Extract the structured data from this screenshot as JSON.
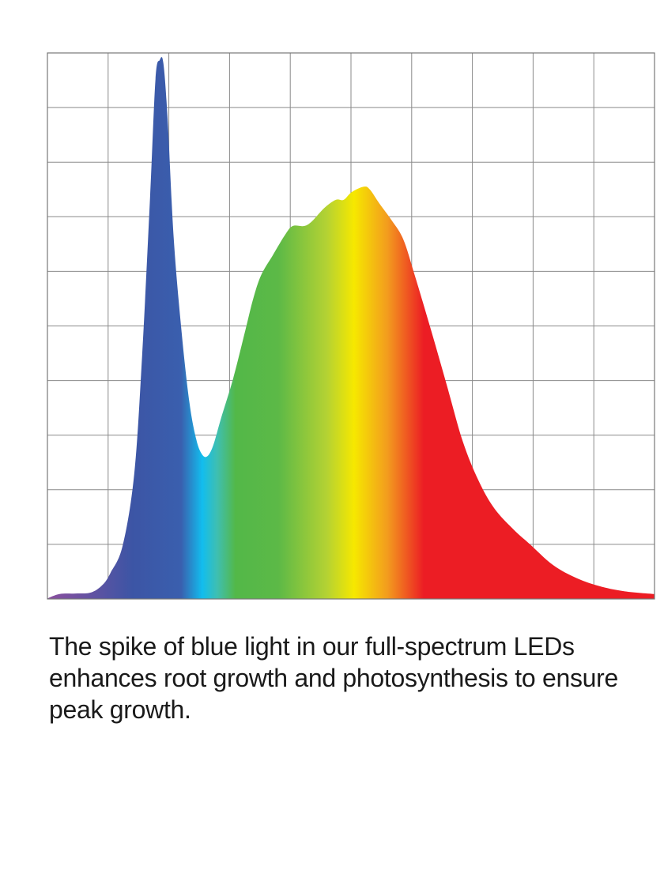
{
  "caption": "The spike of blue light in our full-spectrum LEDs enhances root growth and photosynthesis to ensure peak growth.",
  "chart_data": {
    "type": "area",
    "title": "",
    "xlabel": "",
    "ylabel": "",
    "xlim": [
      0,
      10
    ],
    "ylim": [
      0,
      10
    ],
    "grid": true,
    "grid_divisions": {
      "x": 10,
      "y": 10
    },
    "tick_labels": "none",
    "fill": "visible-spectrum gradient (violet to red)",
    "gradient_colors": [
      {
        "x": 0,
        "color": "#8a4f9e"
      },
      {
        "x": 1.4,
        "color": "#3c55a5"
      },
      {
        "x": 2.2,
        "color": "#3a5fae"
      },
      {
        "x": 2.55,
        "color": "#12bdee"
      },
      {
        "x": 2.8,
        "color": "#3fbfb0"
      },
      {
        "x": 3.1,
        "color": "#53b848"
      },
      {
        "x": 3.8,
        "color": "#5cb947"
      },
      {
        "x": 4.6,
        "color": "#b4d233"
      },
      {
        "x": 5.05,
        "color": "#f6e800"
      },
      {
        "x": 5.6,
        "color": "#f39c1e"
      },
      {
        "x": 6.2,
        "color": "#ec1d24"
      },
      {
        "x": 10,
        "color": "#ec1d24"
      }
    ],
    "x": [
      0,
      0.2,
      0.46,
      0.72,
      0.91,
      1.04,
      1.24,
      1.43,
      1.56,
      1.69,
      1.78,
      1.85,
      1.91,
      1.98,
      2.08,
      2.21,
      2.34,
      2.45,
      2.54,
      2.63,
      2.73,
      2.86,
      3.06,
      3.26,
      3.39,
      3.52,
      3.71,
      3.91,
      4.04,
      4.23,
      4.36,
      4.56,
      4.75,
      4.88,
      5.01,
      5.21,
      5.31,
      5.47,
      5.66,
      5.86,
      6.05,
      6.32,
      6.58,
      6.84,
      7.1,
      7.36,
      7.68,
      7.94,
      8.33,
      8.72,
      9.11,
      9.51,
      10
    ],
    "y": [
      0.01,
      0.09,
      0.1,
      0.12,
      0.26,
      0.48,
      0.98,
      2.29,
      4.46,
      7.34,
      9.52,
      9.87,
      9.81,
      8.78,
      6.61,
      4.89,
      3.59,
      2.93,
      2.66,
      2.61,
      2.81,
      3.31,
      4.04,
      4.92,
      5.5,
      5.93,
      6.29,
      6.66,
      6.83,
      6.83,
      6.92,
      7.16,
      7.31,
      7.31,
      7.45,
      7.55,
      7.5,
      7.24,
      6.95,
      6.59,
      5.93,
      4.92,
      3.91,
      2.89,
      2.17,
      1.66,
      1.27,
      1.01,
      0.62,
      0.38,
      0.23,
      0.14,
      0.09
    ]
  }
}
